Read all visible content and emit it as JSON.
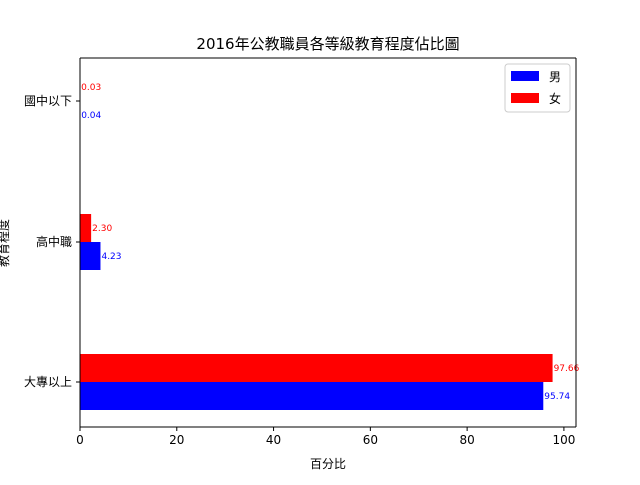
{
  "chart_data": {
    "type": "bar",
    "orientation": "horizontal",
    "title": "2016年公教職員各等級教育程度佔比圖",
    "xlabel": "百分比",
    "ylabel": "教育程度",
    "categories": [
      "大專以上",
      "高中職",
      "國中以下"
    ],
    "series": [
      {
        "name": "男",
        "color": "#0000ff",
        "values": [
          95.74,
          4.23,
          0.04
        ],
        "labels": [
          "95.74",
          "4.23",
          "0.04"
        ]
      },
      {
        "name": "女",
        "color": "#ff0000",
        "values": [
          97.66,
          2.3,
          0.03
        ],
        "labels": [
          "97.66",
          "2.30",
          "0.03"
        ]
      }
    ],
    "xlim": [
      0,
      102.5
    ],
    "xticks": [
      0,
      20,
      40,
      60,
      80,
      100
    ],
    "xtick_labels": [
      "0",
      "20",
      "40",
      "60",
      "80",
      "100"
    ],
    "grid": false,
    "legend_position": "top-right"
  }
}
